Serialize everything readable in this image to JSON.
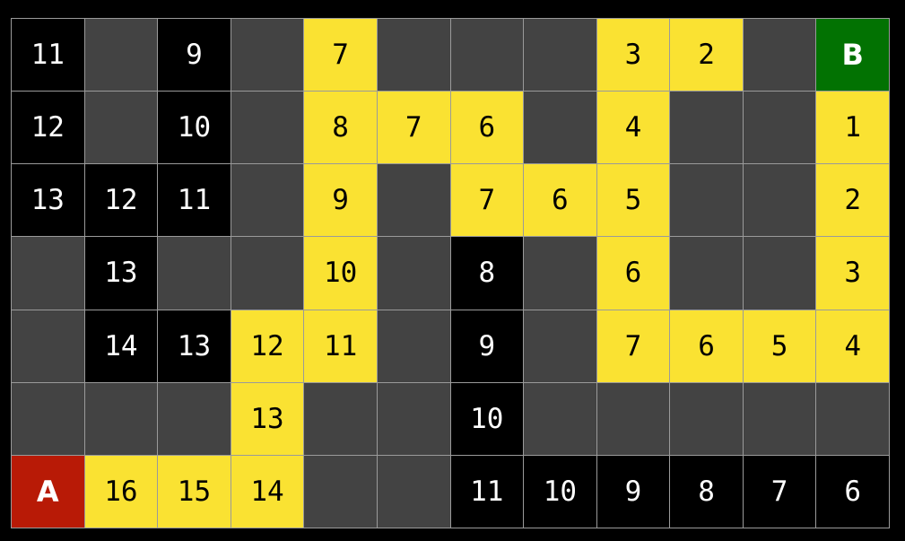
{
  "colors": {
    "wall": "#434343",
    "visited": "#000000",
    "path": "#fae232",
    "start": "#b81a06",
    "goal": "#027202",
    "grid_line": "#9a9a9a"
  },
  "grid": [
    [
      [
        "visited",
        "11"
      ],
      [
        "wall",
        ""
      ],
      [
        "visited",
        "9"
      ],
      [
        "wall",
        ""
      ],
      [
        "path",
        "7"
      ],
      [
        "wall",
        ""
      ],
      [
        "wall",
        ""
      ],
      [
        "wall",
        ""
      ],
      [
        "path",
        "3"
      ],
      [
        "path",
        "2"
      ],
      [
        "wall",
        ""
      ],
      [
        "goal",
        "B"
      ]
    ],
    [
      [
        "visited",
        "12"
      ],
      [
        "wall",
        ""
      ],
      [
        "visited",
        "10"
      ],
      [
        "wall",
        ""
      ],
      [
        "path",
        "8"
      ],
      [
        "path",
        "7"
      ],
      [
        "path",
        "6"
      ],
      [
        "wall",
        ""
      ],
      [
        "path",
        "4"
      ],
      [
        "wall",
        ""
      ],
      [
        "wall",
        ""
      ],
      [
        "path",
        "1"
      ]
    ],
    [
      [
        "visited",
        "13"
      ],
      [
        "visited",
        "12"
      ],
      [
        "visited",
        "11"
      ],
      [
        "wall",
        ""
      ],
      [
        "path",
        "9"
      ],
      [
        "wall",
        ""
      ],
      [
        "path",
        "7"
      ],
      [
        "path",
        "6"
      ],
      [
        "path",
        "5"
      ],
      [
        "wall",
        ""
      ],
      [
        "wall",
        ""
      ],
      [
        "path",
        "2"
      ]
    ],
    [
      [
        "wall",
        ""
      ],
      [
        "visited",
        "13"
      ],
      [
        "wall",
        ""
      ],
      [
        "wall",
        ""
      ],
      [
        "path",
        "10"
      ],
      [
        "wall",
        ""
      ],
      [
        "visited",
        "8"
      ],
      [
        "wall",
        ""
      ],
      [
        "path",
        "6"
      ],
      [
        "wall",
        ""
      ],
      [
        "wall",
        ""
      ],
      [
        "path",
        "3"
      ]
    ],
    [
      [
        "wall",
        ""
      ],
      [
        "visited",
        "14"
      ],
      [
        "visited",
        "13"
      ],
      [
        "path",
        "12"
      ],
      [
        "path",
        "11"
      ],
      [
        "wall",
        ""
      ],
      [
        "visited",
        "9"
      ],
      [
        "wall",
        ""
      ],
      [
        "path",
        "7"
      ],
      [
        "path",
        "6"
      ],
      [
        "path",
        "5"
      ],
      [
        "path",
        "4"
      ]
    ],
    [
      [
        "wall",
        ""
      ],
      [
        "wall",
        ""
      ],
      [
        "wall",
        ""
      ],
      [
        "path",
        "13"
      ],
      [
        "wall",
        ""
      ],
      [
        "wall",
        ""
      ],
      [
        "visited",
        "10"
      ],
      [
        "wall",
        ""
      ],
      [
        "wall",
        ""
      ],
      [
        "wall",
        ""
      ],
      [
        "wall",
        ""
      ],
      [
        "wall",
        ""
      ]
    ],
    [
      [
        "start",
        "A"
      ],
      [
        "path",
        "16"
      ],
      [
        "path",
        "15"
      ],
      [
        "path",
        "14"
      ],
      [
        "wall",
        ""
      ],
      [
        "wall",
        ""
      ],
      [
        "visited",
        "11"
      ],
      [
        "visited",
        "10"
      ],
      [
        "visited",
        "9"
      ],
      [
        "visited",
        "8"
      ],
      [
        "visited",
        "7"
      ],
      [
        "visited",
        "6"
      ]
    ]
  ]
}
